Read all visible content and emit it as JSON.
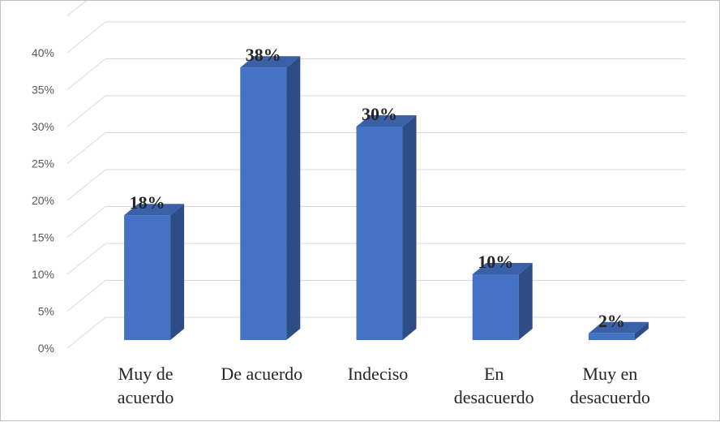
{
  "chart_data": {
    "type": "bar",
    "categories": [
      [
        "Muy de",
        "acuerdo"
      ],
      [
        "De acuerdo"
      ],
      [
        "Indeciso"
      ],
      [
        "En",
        "desacuerdo"
      ],
      [
        "Muy en",
        "desacuerdo"
      ]
    ],
    "values": [
      18,
      38,
      30,
      10,
      2
    ],
    "data_labels": [
      "18%",
      "38%",
      "30%",
      "10%",
      "2%"
    ],
    "y_ticks": [
      "0%",
      "5%",
      "10%",
      "15%",
      "20%",
      "25%",
      "30%",
      "35%",
      "40%"
    ],
    "ylim": [
      0,
      40
    ],
    "grid": true,
    "style": "3d-column",
    "colors": {
      "front": "#4472c4",
      "side": "#2e4c86",
      "top": "#3a61a8",
      "grid": "#d9d9d9"
    }
  }
}
